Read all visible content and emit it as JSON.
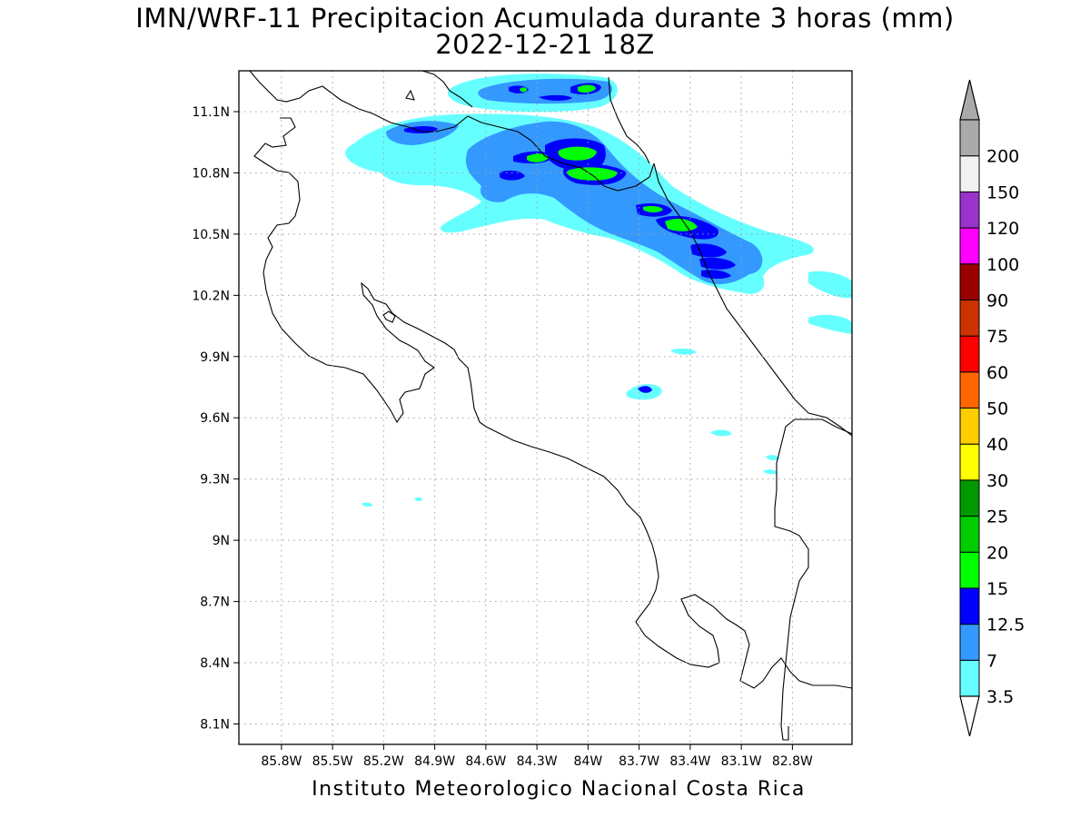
{
  "title": "IMN/WRF-11 Precipitacion Acumulada durante 3 horas (mm)",
  "subtitle": "2022-12-21 18Z",
  "footer": "Instituto Meteorologico Nacional Costa Rica",
  "map": {
    "lon_range": [
      -86.05,
      -82.45
    ],
    "lat_range": [
      8.0,
      11.3
    ],
    "grid": true,
    "lat_ticks": [
      {
        "value": 11.1,
        "label": "11.1N"
      },
      {
        "value": 10.8,
        "label": "10.8N"
      },
      {
        "value": 10.5,
        "label": "10.5N"
      },
      {
        "value": 10.2,
        "label": "10.2N"
      },
      {
        "value": 9.9,
        "label": "9.9N"
      },
      {
        "value": 9.6,
        "label": "9.6N"
      },
      {
        "value": 9.3,
        "label": "9.3N"
      },
      {
        "value": 9.0,
        "label": "9N"
      },
      {
        "value": 8.7,
        "label": "8.7N"
      },
      {
        "value": 8.4,
        "label": "8.4N"
      },
      {
        "value": 8.1,
        "label": "8.1N"
      }
    ],
    "lon_ticks": [
      {
        "value": -85.8,
        "label": "85.8W"
      },
      {
        "value": -85.5,
        "label": "85.5W"
      },
      {
        "value": -85.2,
        "label": "85.2W"
      },
      {
        "value": -84.9,
        "label": "84.9W"
      },
      {
        "value": -84.6,
        "label": "84.6W"
      },
      {
        "value": -84.3,
        "label": "84.3W"
      },
      {
        "value": -84.0,
        "label": "84W"
      },
      {
        "value": -83.7,
        "label": "83.7W"
      },
      {
        "value": -83.4,
        "label": "83.4W"
      },
      {
        "value": -83.1,
        "label": "83.1W"
      },
      {
        "value": -82.8,
        "label": "82.8W"
      }
    ]
  },
  "colorbar": {
    "levels": [
      "3.5",
      "7",
      "12.5",
      "15",
      "20",
      "25",
      "30",
      "40",
      "50",
      "60",
      "75",
      "90",
      "100",
      "120",
      "150",
      "200"
    ],
    "colors": [
      "#66ffff",
      "#3399ff",
      "#0000ff",
      "#00ff00",
      "#00cc00",
      "#009900",
      "#ffff00",
      "#ffcc00",
      "#ff6600",
      "#ff0000",
      "#cc3300",
      "#990000",
      "#ff00ff",
      "#9933cc",
      "#f2f2f2",
      "#aaaaaa"
    ],
    "under_color": "#ffffff",
    "over_color": "#aaaaaa"
  }
}
